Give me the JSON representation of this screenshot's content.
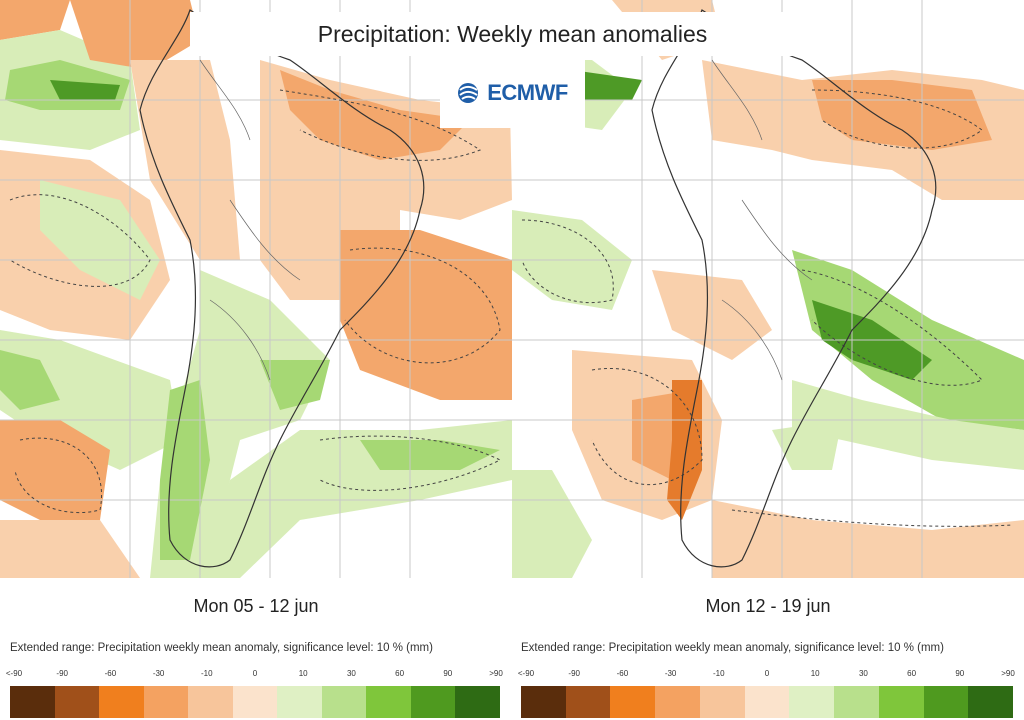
{
  "title": "Precipitation: Weekly mean anomalies",
  "logo": {
    "text": "ECMWF",
    "icon": "ecmwf-logo-icon",
    "color": "#1f5ea8"
  },
  "maps": [
    {
      "id": "left",
      "period": "Mon 05 - 12 jun"
    },
    {
      "id": "right",
      "period": "Mon 12 - 19 jun"
    }
  ],
  "legend": {
    "title": "Extended range: Precipitation weekly mean anomaly, significance level: 10 % (mm)",
    "ticks": [
      "<-90",
      "-90",
      "-60",
      "-30",
      "-10",
      "0",
      "10",
      "30",
      "60",
      "90",
      ">90"
    ],
    "colors": [
      "#5a2d0c",
      "#a0501a",
      "#f07f1e",
      "#f4a261",
      "#f7c59b",
      "#fbe3cc",
      "#dff0c4",
      "#b8e08c",
      "#7fc63b",
      "#4f9a1f",
      "#2e6b14"
    ]
  },
  "palette": {
    "ocean": "#ffffff",
    "dry_light": "#f9d0ac",
    "dry_mid": "#f3a76c",
    "dry_strong": "#e57b2c",
    "wet_light": "#d8edb8",
    "wet_mid": "#a6d874",
    "wet_strong": "#4e9a26",
    "coast": "#333333",
    "grid": "#c8c8c8"
  }
}
